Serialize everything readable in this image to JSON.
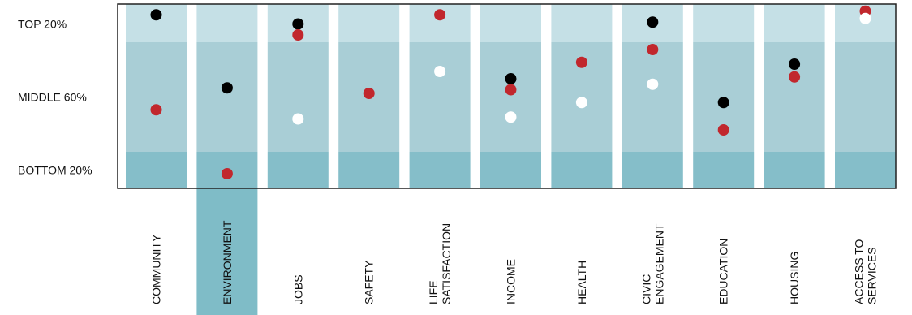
{
  "chart_data": {
    "type": "scatter",
    "bands": [
      {
        "label": "TOP 20%",
        "range": [
          80,
          100
        ],
        "color": "#c5e0e6"
      },
      {
        "label": "MIDDLE 60%",
        "range": [
          20,
          80
        ],
        "color": "#a9ced6"
      },
      {
        "label": "BOTTOM 20%",
        "range": [
          0,
          20
        ],
        "color": "#85bec9"
      }
    ],
    "categories": [
      {
        "lines": [
          "COMMUNITY"
        ]
      },
      {
        "lines": [
          "ENVIRONMENT"
        ],
        "highlight": true
      },
      {
        "lines": [
          "JOBS"
        ]
      },
      {
        "lines": [
          "SAFETY"
        ]
      },
      {
        "lines": [
          "LIFE",
          "SATISFACTION"
        ]
      },
      {
        "lines": [
          "INCOME"
        ]
      },
      {
        "lines": [
          "HEALTH"
        ]
      },
      {
        "lines": [
          "CIVIC",
          "ENGAGEMENT"
        ]
      },
      {
        "lines": [
          "EDUCATION"
        ]
      },
      {
        "lines": [
          "HOUSING"
        ]
      },
      {
        "lines": [
          "ACCESS TO",
          "SERVICES"
        ]
      }
    ],
    "series": [
      {
        "color": "#000000",
        "values": [
          95,
          55,
          90,
          null,
          null,
          60,
          null,
          91,
          47,
          68,
          null
        ]
      },
      {
        "color": "#c1272d",
        "values": [
          43,
          8,
          84,
          52,
          95,
          54,
          69,
          76,
          32,
          61,
          97
        ]
      },
      {
        "color": "#ffffff",
        "values": [
          null,
          null,
          38,
          null,
          64,
          39,
          47,
          57,
          null,
          null,
          93
        ]
      }
    ],
    "ylim": [
      0,
      100
    ],
    "highlight_color": "#7fbcc7",
    "gap_color": "#ffffff",
    "frame_color": "#222222"
  }
}
